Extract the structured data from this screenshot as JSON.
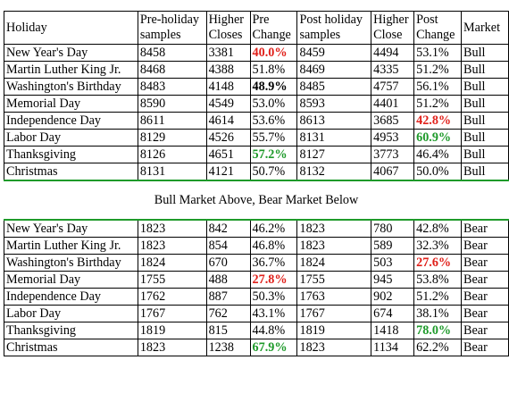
{
  "headers": {
    "holiday": "Holiday",
    "pre_samples": "Pre-holiday samples",
    "higher_closes": "Higher Closes",
    "pre_change": "Pre Change",
    "post_samples": "Post holiday samples",
    "higher_close": "Higher Close",
    "post_change": "Post Change",
    "market": "Market"
  },
  "divider_text": "Bull Market Above, Bear Market Below",
  "bull_rows": [
    {
      "holiday": "New Year's Day",
      "pre_samples": "8458",
      "higher_closes": "3381",
      "pre_change": "40.0%",
      "post_samples": "8459",
      "higher_close": "4494",
      "post_change": "53.1%",
      "market": "Bull",
      "pre_style": "red",
      "post_style": ""
    },
    {
      "holiday": "Martin Luther King Jr.",
      "pre_samples": "8468",
      "higher_closes": "4388",
      "pre_change": "51.8%",
      "post_samples": "8469",
      "higher_close": "4335",
      "post_change": "51.2%",
      "market": "Bull",
      "pre_style": "",
      "post_style": ""
    },
    {
      "holiday": "Washington's Birthday",
      "pre_samples": "8483",
      "higher_closes": "4148",
      "pre_change": "48.9%",
      "post_samples": "8485",
      "higher_close": "4757",
      "post_change": "56.1%",
      "market": "Bull",
      "pre_style": "bold",
      "post_style": ""
    },
    {
      "holiday": "Memorial Day",
      "pre_samples": "8590",
      "higher_closes": "4549",
      "pre_change": "53.0%",
      "post_samples": "8593",
      "higher_close": "4401",
      "post_change": "51.2%",
      "market": "Bull",
      "pre_style": "",
      "post_style": ""
    },
    {
      "holiday": "Independence Day",
      "pre_samples": "8611",
      "higher_closes": "4614",
      "pre_change": "53.6%",
      "post_samples": "8613",
      "higher_close": "3685",
      "post_change": "42.8%",
      "market": "Bull",
      "pre_style": "",
      "post_style": "red"
    },
    {
      "holiday": "Labor Day",
      "pre_samples": "8129",
      "higher_closes": "4526",
      "pre_change": "55.7%",
      "post_samples": "8131",
      "higher_close": "4953",
      "post_change": "60.9%",
      "market": "Bull",
      "pre_style": "",
      "post_style": "green"
    },
    {
      "holiday": "Thanksgiving",
      "pre_samples": "8126",
      "higher_closes": "4651",
      "pre_change": "57.2%",
      "post_samples": "8127",
      "higher_close": "3773",
      "post_change": "46.4%",
      "market": "Bull",
      "pre_style": "green",
      "post_style": ""
    },
    {
      "holiday": "Christmas",
      "pre_samples": "8131",
      "higher_closes": "4121",
      "pre_change": "50.7%",
      "post_samples": "8132",
      "higher_close": "4067",
      "post_change": "50.0%",
      "market": "Bull",
      "pre_style": "",
      "post_style": ""
    }
  ],
  "bear_rows": [
    {
      "holiday": "New Year's Day",
      "pre_samples": "1823",
      "higher_closes": "842",
      "pre_change": "46.2%",
      "post_samples": "1823",
      "higher_close": "780",
      "post_change": "42.8%",
      "market": "Bear",
      "pre_style": "",
      "post_style": ""
    },
    {
      "holiday": "Martin Luther King Jr.",
      "pre_samples": "1823",
      "higher_closes": "854",
      "pre_change": "46.8%",
      "post_samples": "1823",
      "higher_close": "589",
      "post_change": "32.3%",
      "market": "Bear",
      "pre_style": "",
      "post_style": ""
    },
    {
      "holiday": "Washington's Birthday",
      "pre_samples": "1824",
      "higher_closes": "670",
      "pre_change": "36.7%",
      "post_samples": "1824",
      "higher_close": "503",
      "post_change": "27.6%",
      "market": "Bear",
      "pre_style": "",
      "post_style": "red"
    },
    {
      "holiday": "Memorial Day",
      "pre_samples": "1755",
      "higher_closes": "488",
      "pre_change": "27.8%",
      "post_samples": "1755",
      "higher_close": "945",
      "post_change": "53.8%",
      "market": "Bear",
      "pre_style": "red",
      "post_style": ""
    },
    {
      "holiday": "Independence Day",
      "pre_samples": "1762",
      "higher_closes": "887",
      "pre_change": "50.3%",
      "post_samples": "1763",
      "higher_close": "902",
      "post_change": "51.2%",
      "market": "Bear",
      "pre_style": "",
      "post_style": ""
    },
    {
      "holiday": "Labor Day",
      "pre_samples": "1767",
      "higher_closes": "762",
      "pre_change": "43.1%",
      "post_samples": "1767",
      "higher_close": "674",
      "post_change": "38.1%",
      "market": "Bear",
      "pre_style": "",
      "post_style": ""
    },
    {
      "holiday": "Thanksgiving",
      "pre_samples": "1819",
      "higher_closes": "815",
      "pre_change": "44.8%",
      "post_samples": "1819",
      "higher_close": "1418",
      "post_change": "78.0%",
      "market": "Bear",
      "pre_style": "",
      "post_style": "green"
    },
    {
      "holiday": "Christmas",
      "pre_samples": "1823",
      "higher_closes": "1238",
      "pre_change": "67.9%",
      "post_samples": "1823",
      "higher_close": "1134",
      "post_change": "62.2%",
      "market": "Bear",
      "pre_style": "green",
      "post_style": ""
    }
  ],
  "colors": {
    "highlight_red": "#e0201a",
    "highlight_green": "#1e9a2a",
    "divider_green": "#1e9a2a"
  }
}
